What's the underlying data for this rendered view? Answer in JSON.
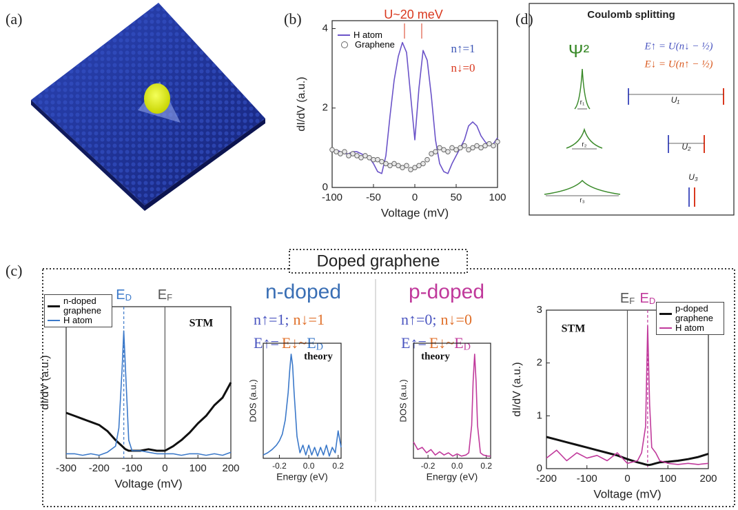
{
  "panel_labels": [
    "(a)",
    "(b)",
    "(c)",
    "(d)"
  ],
  "doped": {
    "title": "Doped graphene",
    "n": {
      "title": "n-doped",
      "occupation": [
        "n↑=1;",
        "n↓=1"
      ],
      "energy": [
        "E↑=",
        "E↓~",
        "ED"
      ]
    },
    "p": {
      "title": "p-doped",
      "occupation": [
        "n↑=0;",
        "n↓=0"
      ],
      "energy": [
        "E↑=",
        "E↓~",
        "ED"
      ]
    }
  },
  "coulomb": {
    "title": "Coulomb splitting",
    "psi": "Ψ²",
    "e_up": "E↑ = U(n↓ − ½)",
    "e_down": "E↓ = U(n↑ − ½)",
    "r": [
      "r₁",
      "r₂",
      "r₃"
    ],
    "u": [
      "U₁",
      "U₂",
      "U₃"
    ]
  },
  "chart_data": [
    {
      "type": "line",
      "xlabel": "Voltage (mV)",
      "ylabel": "dI/dV (a.u.)",
      "annotations": [
        "U~20 meV",
        "n↑=1",
        "n↓=0"
      ],
      "x": [
        -100,
        -95,
        -90,
        -85,
        -80,
        -75,
        -70,
        -65,
        -60,
        -55,
        -50,
        -45,
        -40,
        -35,
        -30,
        -25,
        -20,
        -15,
        -10,
        -5,
        0,
        5,
        10,
        15,
        20,
        25,
        30,
        35,
        40,
        45,
        50,
        55,
        60,
        65,
        70,
        75,
        80,
        85,
        90,
        95,
        100
      ],
      "xlim": [
        -100,
        100
      ],
      "xticks": [
        -100,
        -50,
        0,
        50,
        100
      ],
      "ylim": [
        0,
        4.2
      ],
      "yticks": [
        0,
        2,
        4
      ],
      "series": [
        {
          "name": "H atom",
          "color": "#6a52c8",
          "values": [
            0.9,
            0.95,
            0.9,
            0.85,
            0.85,
            0.9,
            0.9,
            0.85,
            0.8,
            0.75,
            0.6,
            0.4,
            0.35,
            0.8,
            1.8,
            2.7,
            3.3,
            3.65,
            3.4,
            2.3,
            1.2,
            2.5,
            3.45,
            3.2,
            2.3,
            1.2,
            0.6,
            0.4,
            0.35,
            0.6,
            0.8,
            1.0,
            1.2,
            1.55,
            1.65,
            1.55,
            1.3,
            1.15,
            1.05,
            1.1,
            1.25
          ]
        },
        {
          "name": "Graphene",
          "color": "#666666",
          "marker": "circle",
          "values": [
            0.95,
            0.9,
            0.85,
            0.9,
            0.8,
            0.85,
            0.8,
            0.75,
            0.8,
            0.75,
            0.7,
            0.7,
            0.65,
            0.6,
            0.55,
            0.6,
            0.55,
            0.5,
            0.55,
            0.45,
            0.5,
            0.55,
            0.6,
            0.7,
            0.85,
            0.9,
            1.0,
            0.95,
            0.9,
            1.0,
            0.95,
            1.0,
            1.05,
            0.95,
            1.0,
            1.05,
            1.0,
            1.05,
            1.1,
            1.05,
            1.15
          ]
        }
      ]
    },
    {
      "type": "line",
      "xlabel": "Voltage (mV)",
      "ylabel": "dI/dV (a.u.)",
      "annotations": [
        "STM"
      ],
      "x": [
        -300,
        -275,
        -250,
        -225,
        -200,
        -175,
        -150,
        -140,
        -130,
        -125,
        -120,
        -110,
        -100,
        -75,
        -50,
        -25,
        0,
        25,
        50,
        75,
        100,
        125,
        150,
        175,
        200
      ],
      "xlim": [
        -300,
        200
      ],
      "xticks": [
        -300,
        -200,
        -100,
        0,
        100,
        200
      ],
      "ylim": [
        0,
        1
      ],
      "vlines": [
        {
          "x": -125,
          "label": "ED",
          "color": "#3a78c9",
          "dashed": true
        },
        {
          "x": 0,
          "label": "EF",
          "color": "#555555"
        }
      ],
      "series": [
        {
          "name": "n-doped graphene",
          "color": "#111111",
          "width": 3,
          "values": [
            0.3,
            0.28,
            0.26,
            0.24,
            0.22,
            0.18,
            0.12,
            0.1,
            0.08,
            0.07,
            0.06,
            0.05,
            0.05,
            0.05,
            0.06,
            0.05,
            0.05,
            0.08,
            0.12,
            0.17,
            0.23,
            0.28,
            0.35,
            0.4,
            0.5
          ]
        },
        {
          "name": "H atom",
          "color": "#3a78c9",
          "values": [
            0.03,
            0.03,
            0.02,
            0.03,
            0.02,
            0.04,
            0.08,
            0.2,
            0.6,
            0.84,
            0.6,
            0.12,
            0.05,
            0.05,
            0.04,
            0.03,
            0.03,
            0.03,
            0.02,
            0.03,
            0.03,
            0.02,
            0.03,
            0.02,
            0.04
          ]
        }
      ]
    },
    {
      "type": "line",
      "xlabel": "Energy (eV)",
      "ylabel": "DOS (a.u.)",
      "annotations": [
        "theory"
      ],
      "x": [
        -0.31,
        -0.28,
        -0.25,
        -0.22,
        -0.2,
        -0.18,
        -0.16,
        -0.14,
        -0.13,
        -0.12,
        -0.11,
        -0.1,
        -0.08,
        -0.06,
        -0.04,
        -0.02,
        0.0,
        0.02,
        0.04,
        0.06,
        0.08,
        0.1,
        0.12,
        0.14,
        0.16,
        0.18,
        0.2,
        0.22
      ],
      "xlim": [
        -0.31,
        0.22
      ],
      "xticks": [
        -0.2,
        {
          "value": 0,
          "label": "0.0"
        },
        0.2
      ],
      "ylim": [
        0,
        1.05
      ],
      "series": [
        {
          "color": "#3a78c9",
          "values": [
            0.03,
            0.05,
            0.08,
            0.12,
            0.16,
            0.22,
            0.35,
            0.6,
            0.8,
            0.95,
            0.85,
            0.6,
            0.2,
            0.05,
            0.12,
            0.03,
            0.12,
            0.03,
            0.1,
            0.02,
            0.1,
            0.03,
            0.12,
            0.02,
            0.1,
            0.05,
            0.25,
            0.1
          ]
        }
      ]
    },
    {
      "type": "line",
      "xlabel": "Energy (eV)",
      "ylabel": "DOS (a.u.)",
      "annotations": [
        "theory"
      ],
      "x": [
        -0.3,
        -0.27,
        -0.24,
        -0.21,
        -0.18,
        -0.15,
        -0.12,
        -0.09,
        -0.06,
        -0.03,
        0.0,
        0.03,
        0.06,
        0.08,
        0.1,
        0.11,
        0.12,
        0.13,
        0.14,
        0.16,
        0.18,
        0.21,
        0.23
      ],
      "xlim": [
        -0.3,
        0.23
      ],
      "xticks": [
        -0.2,
        {
          "value": 0,
          "label": "0.0"
        },
        0.2
      ],
      "ylim": [
        0,
        1.05
      ],
      "series": [
        {
          "color": "#c0399b",
          "values": [
            0.15,
            0.08,
            0.1,
            0.05,
            0.08,
            0.03,
            0.06,
            0.03,
            0.05,
            0.02,
            0.04,
            0.02,
            0.03,
            0.05,
            0.3,
            0.7,
            0.95,
            0.7,
            0.3,
            0.05,
            0.03,
            0.02,
            0.02
          ]
        }
      ]
    },
    {
      "type": "line",
      "xlabel": "Voltage (mV)",
      "ylabel": "dI/dV (a.u.)",
      "annotations": [
        "STM"
      ],
      "x": [
        -200,
        -175,
        -150,
        -125,
        -100,
        -75,
        -50,
        -25,
        0,
        25,
        35,
        45,
        50,
        55,
        60,
        70,
        80,
        100,
        125,
        150,
        175,
        200
      ],
      "xlim": [
        -200,
        200
      ],
      "xticks": [
        -200,
        -100,
        0,
        100,
        200
      ],
      "ylim": [
        0,
        3
      ],
      "yticks": [
        0,
        1,
        2,
        3
      ],
      "vlines": [
        {
          "x": 0,
          "label": "EF",
          "color": "#555555"
        },
        {
          "x": 50,
          "label": "ED",
          "color": "#c0399b",
          "dashed": true
        }
      ],
      "series": [
        {
          "name": "p-doped graphene",
          "color": "#111111",
          "width": 3,
          "values": [
            0.6,
            0.55,
            0.5,
            0.45,
            0.4,
            0.35,
            0.3,
            0.25,
            0.18,
            0.12,
            0.1,
            0.08,
            0.07,
            0.07,
            0.08,
            0.1,
            0.12,
            0.13,
            0.15,
            0.18,
            0.22,
            0.28
          ]
        },
        {
          "name": "H atom",
          "color": "#c0399b",
          "values": [
            0.2,
            0.35,
            0.15,
            0.3,
            0.2,
            0.25,
            0.15,
            0.3,
            0.1,
            0.15,
            0.3,
            0.8,
            2.7,
            1.2,
            0.4,
            0.3,
            0.15,
            0.1,
            0.08,
            0.1,
            0.08,
            0.1
          ]
        }
      ]
    }
  ]
}
